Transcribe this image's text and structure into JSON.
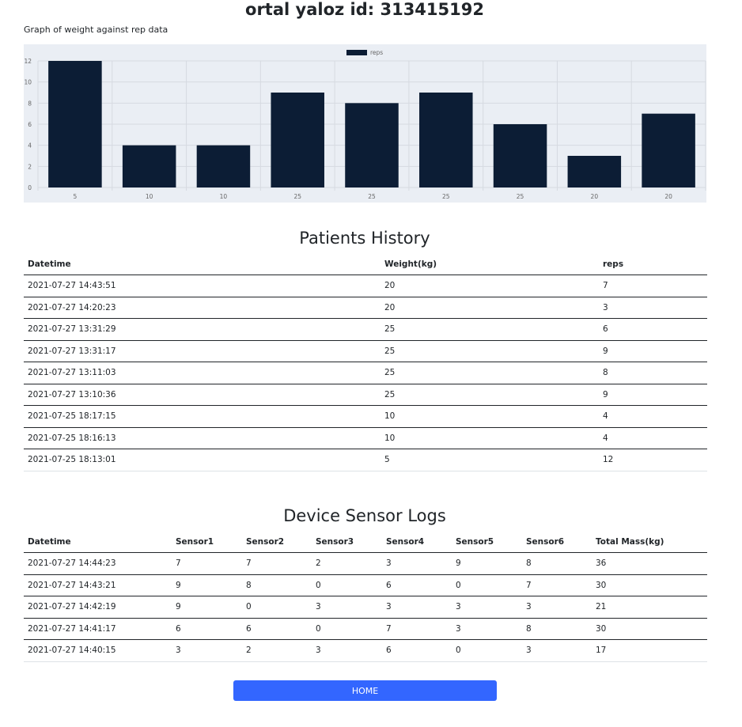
{
  "header": {
    "title": "ortal yaloz id: 313415192"
  },
  "chart_caption": "Graph of weight against rep data",
  "chart_data": {
    "type": "bar",
    "categories": [
      "5",
      "10",
      "10",
      "25",
      "25",
      "25",
      "25",
      "20",
      "20"
    ],
    "series": [
      {
        "name": "reps",
        "values": [
          12,
          4,
          4,
          9,
          8,
          9,
          6,
          3,
          7
        ],
        "color": "#0c1d35"
      }
    ],
    "ylim": [
      0,
      12
    ],
    "yticks": [
      0,
      2,
      4,
      6,
      8,
      10,
      12
    ],
    "grid": true,
    "legend_position": "top-center",
    "background": "#eaeef4"
  },
  "history": {
    "title": "Patients History",
    "columns": [
      "Datetime",
      "Weight(kg)",
      "reps"
    ],
    "rows": [
      [
        "2021-07-27 14:43:51",
        "20",
        "7"
      ],
      [
        "2021-07-27 14:20:23",
        "20",
        "3"
      ],
      [
        "2021-07-27 13:31:29",
        "25",
        "6"
      ],
      [
        "2021-07-27 13:31:17",
        "25",
        "9"
      ],
      [
        "2021-07-27 13:11:03",
        "25",
        "8"
      ],
      [
        "2021-07-27 13:10:36",
        "25",
        "9"
      ],
      [
        "2021-07-25 18:17:15",
        "10",
        "4"
      ],
      [
        "2021-07-25 18:16:13",
        "10",
        "4"
      ],
      [
        "2021-07-25 18:13:01",
        "5",
        "12"
      ]
    ]
  },
  "sensors": {
    "title": "Device Sensor Logs",
    "columns": [
      "Datetime",
      "Sensor1",
      "Sensor2",
      "Sensor3",
      "Sensor4",
      "Sensor5",
      "Sensor6",
      "Total Mass(kg)"
    ],
    "rows": [
      [
        "2021-07-27 14:44:23",
        "7",
        "7",
        "2",
        "3",
        "9",
        "8",
        "36"
      ],
      [
        "2021-07-27 14:43:21",
        "9",
        "8",
        "0",
        "6",
        "0",
        "7",
        "30"
      ],
      [
        "2021-07-27 14:42:19",
        "9",
        "0",
        "3",
        "3",
        "3",
        "3",
        "21"
      ],
      [
        "2021-07-27 14:41:17",
        "6",
        "6",
        "0",
        "7",
        "3",
        "8",
        "30"
      ],
      [
        "2021-07-27 14:40:15",
        "3",
        "2",
        "3",
        "6",
        "0",
        "3",
        "17"
      ]
    ]
  },
  "footer": {
    "home_label": "HOME",
    "button_color": "#3366ff"
  }
}
